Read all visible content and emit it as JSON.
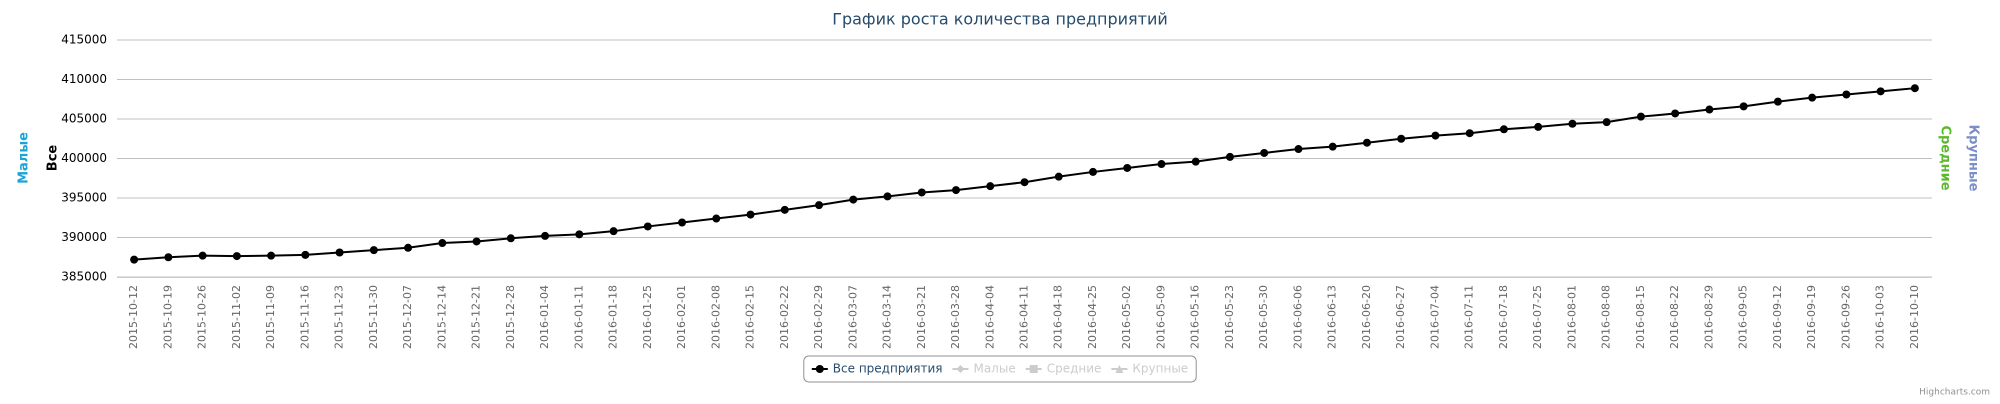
{
  "chart_data": {
    "type": "line",
    "title": "График роста количества предприятий",
    "categories": [
      "2015-10-12",
      "2015-10-19",
      "2015-10-26",
      "2015-11-02",
      "2015-11-09",
      "2015-11-16",
      "2015-11-23",
      "2015-11-30",
      "2015-12-07",
      "2015-12-14",
      "2015-12-21",
      "2015-12-28",
      "2016-01-04",
      "2016-01-11",
      "2016-01-18",
      "2016-01-25",
      "2016-02-01",
      "2016-02-08",
      "2016-02-15",
      "2016-02-22",
      "2016-02-29",
      "2016-03-07",
      "2016-03-14",
      "2016-03-21",
      "2016-03-28",
      "2016-04-04",
      "2016-04-11",
      "2016-04-18",
      "2016-04-25",
      "2016-05-02",
      "2016-05-09",
      "2016-05-16",
      "2016-05-23",
      "2016-05-30",
      "2016-06-06",
      "2016-06-13",
      "2016-06-20",
      "2016-06-27",
      "2016-07-04",
      "2016-07-11",
      "2016-07-18",
      "2016-07-25",
      "2016-08-01",
      "2016-08-08",
      "2016-08-15",
      "2016-08-22",
      "2016-08-29",
      "2016-09-05",
      "2016-09-12",
      "2016-09-19",
      "2016-09-26",
      "2016-10-03",
      "2016-10-10"
    ],
    "series": [
      {
        "name": "Все предприятия",
        "color": "#000000",
        "visible": true,
        "marker": "circle",
        "values": [
          387200,
          387500,
          387700,
          387650,
          387700,
          387800,
          388100,
          388400,
          388700,
          389300,
          389500,
          389900,
          390200,
          390400,
          390800,
          391400,
          391900,
          392400,
          392900,
          393500,
          394100,
          394800,
          395200,
          395700,
          396000,
          396500,
          397000,
          397700,
          398300,
          398800,
          399300,
          399600,
          400200,
          400700,
          401200,
          401500,
          402000,
          402500,
          402900,
          403200,
          403700,
          404000,
          404400,
          404600,
          405300,
          405700,
          406200,
          406600,
          407200,
          407700,
          408100,
          408500,
          408900
        ]
      },
      {
        "name": "Малые",
        "color": "#1ba3d6",
        "visible": false,
        "marker": "diamond"
      },
      {
        "name": "Средние",
        "color": "#5cb82e",
        "visible": false,
        "marker": "square"
      },
      {
        "name": "Крупные",
        "color": "#7b8ec8",
        "visible": false,
        "marker": "triangle"
      }
    ],
    "axis_titles": [
      {
        "text": "Малые",
        "color": "#1ba3d6",
        "side": "left"
      },
      {
        "text": "Все",
        "color": "#000000",
        "side": "left"
      },
      {
        "text": "Средние",
        "color": "#5cb82e",
        "side": "right"
      },
      {
        "text": "Крупные",
        "color": "#7b8ec8",
        "side": "right"
      }
    ],
    "ylim": [
      385000,
      415000
    ],
    "yticks": [
      385000,
      390000,
      395000,
      400000,
      405000,
      410000,
      415000
    ],
    "grid": true,
    "legend": "bottom",
    "credits": "Highcharts.com"
  }
}
